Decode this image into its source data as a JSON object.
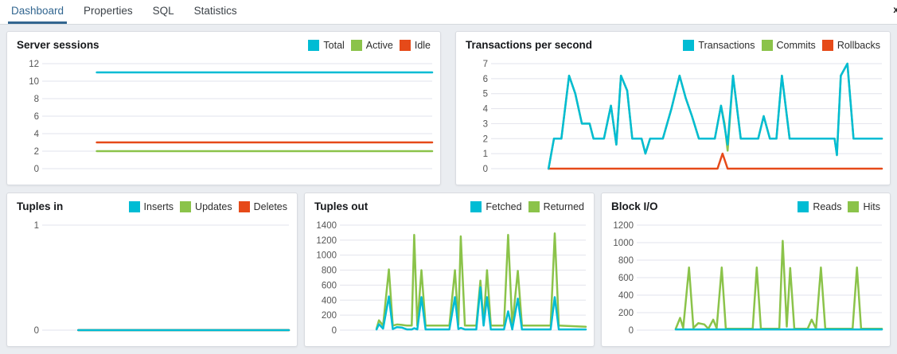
{
  "tabbar": {
    "tabs": [
      {
        "label": "Dashboard",
        "active": true
      },
      {
        "label": "Properties",
        "active": false
      },
      {
        "label": "SQL",
        "active": false
      },
      {
        "label": "Statistics",
        "active": false
      }
    ],
    "close_icon": "x"
  },
  "colors": {
    "accent_blue": "#326690",
    "series_cyan": "#00bcd4",
    "series_green": "#8bc34a",
    "series_red": "#e64a19",
    "gridline": "#e2e3ec",
    "tick_label": "#555555"
  },
  "chart_data": [
    {
      "id": "server-sessions",
      "type": "line",
      "title": "Server sessions",
      "ylim": [
        0,
        12
      ],
      "yticks": [
        0,
        2,
        4,
        6,
        8,
        10,
        12
      ],
      "grid": true,
      "legend_position": "top-right",
      "draw_order": [
        1,
        2,
        0
      ],
      "series": [
        {
          "name": "Total",
          "color": "#00bcd4",
          "points": [
            [
              0.133,
              11
            ],
            [
              1,
              11
            ]
          ]
        },
        {
          "name": "Active",
          "color": "#8bc34a",
          "points": [
            [
              0.133,
              2
            ],
            [
              1,
              2
            ]
          ]
        },
        {
          "name": "Idle",
          "color": "#e64a19",
          "points": [
            [
              0.133,
              3
            ],
            [
              1,
              3
            ]
          ]
        }
      ]
    },
    {
      "id": "transactions-per-second",
      "type": "line",
      "title": "Transactions per second",
      "ylim": [
        0,
        7
      ],
      "yticks": [
        0,
        1,
        2,
        3,
        4,
        5,
        6,
        7
      ],
      "grid": true,
      "legend_position": "top-right",
      "draw_order": [
        1,
        2,
        0
      ],
      "series": [
        {
          "name": "Transactions",
          "color": "#00bcd4",
          "points": [
            [
              0.14,
              0
            ],
            [
              0.154,
              2
            ],
            [
              0.173,
              2
            ],
            [
              0.193,
              6.2
            ],
            [
              0.209,
              5
            ],
            [
              0.226,
              3
            ],
            [
              0.246,
              3
            ],
            [
              0.256,
              2
            ],
            [
              0.283,
              2
            ],
            [
              0.301,
              4.2
            ],
            [
              0.315,
              1.6
            ],
            [
              0.327,
              6.2
            ],
            [
              0.343,
              5.2
            ],
            [
              0.356,
              2
            ],
            [
              0.38,
              2
            ],
            [
              0.39,
              1
            ],
            [
              0.402,
              2
            ],
            [
              0.435,
              2
            ],
            [
              0.457,
              4
            ],
            [
              0.478,
              6.2
            ],
            [
              0.494,
              4.7
            ],
            [
              0.51,
              3.5
            ],
            [
              0.528,
              2
            ],
            [
              0.569,
              2
            ],
            [
              0.585,
              4.2
            ],
            [
              0.602,
              1.6
            ],
            [
              0.616,
              6.2
            ],
            [
              0.636,
              2
            ],
            [
              0.681,
              2
            ],
            [
              0.695,
              3.5
            ],
            [
              0.711,
              2
            ],
            [
              0.728,
              2
            ],
            [
              0.742,
              6.2
            ],
            [
              0.762,
              2
            ],
            [
              0.878,
              2
            ],
            [
              0.884,
              0.9
            ],
            [
              0.894,
              6.2
            ],
            [
              0.911,
              7
            ],
            [
              0.927,
              2
            ],
            [
              1,
              2
            ]
          ]
        },
        {
          "name": "Commits",
          "color": "#8bc34a",
          "points": [
            [
              0.14,
              0
            ],
            [
              0.154,
              2
            ],
            [
              0.173,
              2
            ],
            [
              0.193,
              6.2
            ],
            [
              0.209,
              5
            ],
            [
              0.226,
              3
            ],
            [
              0.246,
              3
            ],
            [
              0.256,
              2
            ],
            [
              0.283,
              2
            ],
            [
              0.301,
              4.2
            ],
            [
              0.315,
              1.6
            ],
            [
              0.327,
              6.2
            ],
            [
              0.343,
              5.2
            ],
            [
              0.356,
              2
            ],
            [
              0.38,
              2
            ],
            [
              0.39,
              1
            ],
            [
              0.402,
              2
            ],
            [
              0.435,
              2
            ],
            [
              0.457,
              4
            ],
            [
              0.478,
              6.2
            ],
            [
              0.494,
              4.7
            ],
            [
              0.51,
              3.5
            ],
            [
              0.528,
              2
            ],
            [
              0.569,
              2
            ],
            [
              0.585,
              4.2
            ],
            [
              0.594,
              3
            ],
            [
              0.602,
              1.2
            ],
            [
              0.616,
              6.2
            ],
            [
              0.636,
              2
            ],
            [
              0.681,
              2
            ],
            [
              0.695,
              3.5
            ],
            [
              0.711,
              2
            ],
            [
              0.728,
              2
            ],
            [
              0.742,
              6.2
            ],
            [
              0.762,
              2
            ],
            [
              0.878,
              2
            ],
            [
              0.884,
              0.9
            ],
            [
              0.894,
              6.2
            ],
            [
              0.911,
              7
            ],
            [
              0.927,
              2
            ],
            [
              1,
              2
            ]
          ]
        },
        {
          "name": "Rollbacks",
          "color": "#e64a19",
          "points": [
            [
              0.14,
              0
            ],
            [
              0.576,
              0
            ],
            [
              0.589,
              1
            ],
            [
              0.602,
              0
            ],
            [
              1,
              0
            ]
          ]
        }
      ]
    },
    {
      "id": "tuples-in",
      "type": "line",
      "title": "Tuples in",
      "ylim": [
        0,
        1
      ],
      "yticks": [
        0,
        1
      ],
      "grid": true,
      "legend_position": "top-right",
      "draw_order": [
        1,
        2,
        0
      ],
      "series": [
        {
          "name": "Inserts",
          "color": "#00bcd4",
          "points": [
            [
              0.135,
              0
            ],
            [
              1,
              0
            ]
          ]
        },
        {
          "name": "Updates",
          "color": "#8bc34a",
          "points": [
            [
              0.135,
              0
            ],
            [
              1,
              0
            ]
          ]
        },
        {
          "name": "Deletes",
          "color": "#e64a19",
          "points": [
            [
              0.135,
              0
            ],
            [
              1,
              0
            ]
          ]
        }
      ]
    },
    {
      "id": "tuples-out",
      "type": "line",
      "title": "Tuples out",
      "ylim": [
        0,
        1400
      ],
      "yticks": [
        0,
        200,
        400,
        600,
        800,
        1000,
        1200,
        1400
      ],
      "grid": true,
      "legend_position": "top-right",
      "draw_order": [
        1,
        0
      ],
      "series": [
        {
          "name": "Fetched",
          "color": "#00bcd4",
          "points": [
            [
              0.138,
              10
            ],
            [
              0.148,
              80
            ],
            [
              0.165,
              20
            ],
            [
              0.189,
              450
            ],
            [
              0.205,
              15
            ],
            [
              0.222,
              40
            ],
            [
              0.242,
              35
            ],
            [
              0.263,
              10
            ],
            [
              0.283,
              10
            ],
            [
              0.293,
              25
            ],
            [
              0.306,
              10
            ],
            [
              0.323,
              440
            ],
            [
              0.34,
              10
            ],
            [
              0.438,
              10
            ],
            [
              0.461,
              440
            ],
            [
              0.475,
              15
            ],
            [
              0.485,
              30
            ],
            [
              0.502,
              10
            ],
            [
              0.549,
              10
            ],
            [
              0.566,
              570
            ],
            [
              0.579,
              60
            ],
            [
              0.593,
              440
            ],
            [
              0.609,
              10
            ],
            [
              0.663,
              10
            ],
            [
              0.68,
              250
            ],
            [
              0.697,
              10
            ],
            [
              0.72,
              420
            ],
            [
              0.737,
              10
            ],
            [
              0.855,
              10
            ],
            [
              0.872,
              440
            ],
            [
              0.889,
              10
            ],
            [
              1,
              10
            ]
          ]
        },
        {
          "name": "Returned",
          "color": "#8bc34a",
          "points": [
            [
              0.138,
              20
            ],
            [
              0.148,
              130
            ],
            [
              0.165,
              60
            ],
            [
              0.189,
              810
            ],
            [
              0.205,
              60
            ],
            [
              0.222,
              75
            ],
            [
              0.242,
              70
            ],
            [
              0.263,
              60
            ],
            [
              0.283,
              60
            ],
            [
              0.293,
              1270
            ],
            [
              0.306,
              60
            ],
            [
              0.323,
              800
            ],
            [
              0.34,
              60
            ],
            [
              0.438,
              60
            ],
            [
              0.461,
              800
            ],
            [
              0.475,
              70
            ],
            [
              0.485,
              1250
            ],
            [
              0.502,
              60
            ],
            [
              0.549,
              60
            ],
            [
              0.566,
              660
            ],
            [
              0.579,
              90
            ],
            [
              0.593,
              800
            ],
            [
              0.609,
              60
            ],
            [
              0.663,
              60
            ],
            [
              0.68,
              1270
            ],
            [
              0.697,
              60
            ],
            [
              0.72,
              790
            ],
            [
              0.737,
              60
            ],
            [
              0.855,
              60
            ],
            [
              0.872,
              1290
            ],
            [
              0.889,
              60
            ],
            [
              1,
              45
            ]
          ]
        }
      ]
    },
    {
      "id": "block-io",
      "type": "line",
      "title": "Block I/O",
      "ylim": [
        0,
        1200
      ],
      "yticks": [
        0,
        200,
        400,
        600,
        800,
        1000,
        1200
      ],
      "grid": true,
      "legend_position": "top-right",
      "draw_order": [
        1,
        0
      ],
      "series": [
        {
          "name": "Reads",
          "color": "#00bcd4",
          "points": [
            [
              0.148,
              8
            ],
            [
              1,
              8
            ]
          ]
        },
        {
          "name": "Hits",
          "color": "#8bc34a",
          "points": [
            [
              0.148,
              15
            ],
            [
              0.166,
              140
            ],
            [
              0.179,
              25
            ],
            [
              0.203,
              715
            ],
            [
              0.221,
              25
            ],
            [
              0.241,
              80
            ],
            [
              0.266,
              65
            ],
            [
              0.283,
              15
            ],
            [
              0.303,
              120
            ],
            [
              0.317,
              20
            ],
            [
              0.338,
              715
            ],
            [
              0.355,
              15
            ],
            [
              0.466,
              15
            ],
            [
              0.483,
              715
            ],
            [
              0.5,
              15
            ],
            [
              0.576,
              15
            ],
            [
              0.59,
              1020
            ],
            [
              0.607,
              40
            ],
            [
              0.621,
              710
            ],
            [
              0.638,
              15
            ],
            [
              0.693,
              15
            ],
            [
              0.71,
              120
            ],
            [
              0.728,
              15
            ],
            [
              0.748,
              715
            ],
            [
              0.766,
              15
            ],
            [
              0.879,
              15
            ],
            [
              0.897,
              715
            ],
            [
              0.914,
              15
            ],
            [
              1,
              15
            ]
          ]
        }
      ]
    }
  ]
}
